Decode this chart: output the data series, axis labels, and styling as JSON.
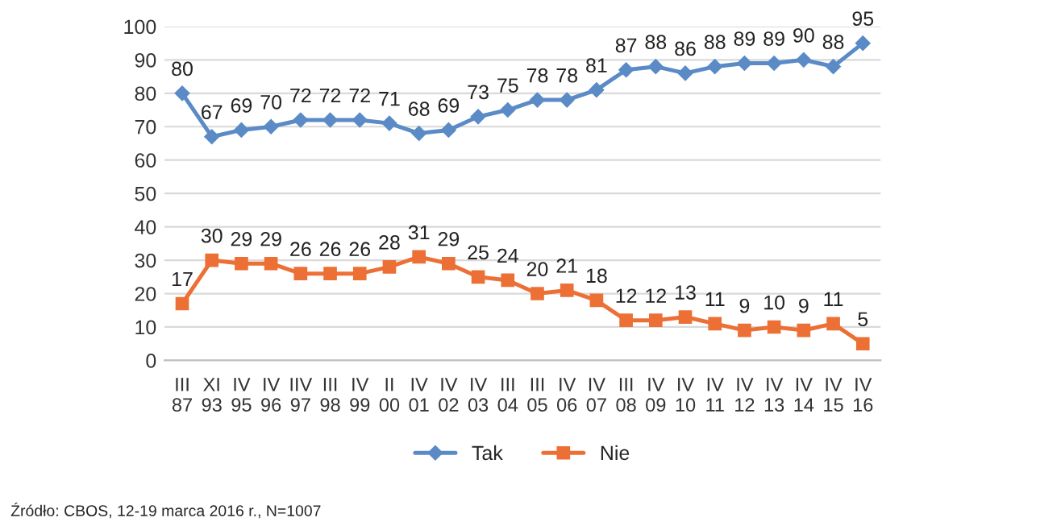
{
  "chart_data": {
    "type": "line",
    "categories": [
      "III\n87",
      "XI\n93",
      "IV\n95",
      "IV\n96",
      "IIV\n97",
      "III\n98",
      "IV\n99",
      "II\n00",
      "IV\n01",
      "IV\n02",
      "IV\n03",
      "III\n04",
      "III\n05",
      "IV\n06",
      "IV\n07",
      "III\n08",
      "IV\n09",
      "IV\n10",
      "IV\n11",
      "IV\n12",
      "IV\n13",
      "IV\n14",
      "IV\n15",
      "IV\n16"
    ],
    "series": [
      {
        "name": "Tak",
        "color": "#5b8bc6",
        "marker": "diamond",
        "values": [
          80,
          67,
          69,
          70,
          72,
          72,
          72,
          71,
          68,
          69,
          73,
          75,
          78,
          78,
          81,
          87,
          88,
          86,
          88,
          89,
          89,
          90,
          88,
          95
        ]
      },
      {
        "name": "Nie",
        "color": "#ec7035",
        "marker": "square",
        "values": [
          17,
          30,
          29,
          29,
          26,
          26,
          26,
          28,
          31,
          29,
          25,
          24,
          20,
          21,
          18,
          12,
          12,
          13,
          11,
          9,
          10,
          9,
          11,
          5
        ]
      }
    ],
    "ylim": [
      0,
      100
    ],
    "yticks": [
      0,
      10,
      20,
      30,
      40,
      50,
      60,
      70,
      80,
      90,
      100
    ],
    "grid": "y",
    "legend": "bottom",
    "data_labels": true,
    "annotations": [
      "Źródło: CBOS, 12-19 marca 2016 r., N=1007"
    ]
  }
}
